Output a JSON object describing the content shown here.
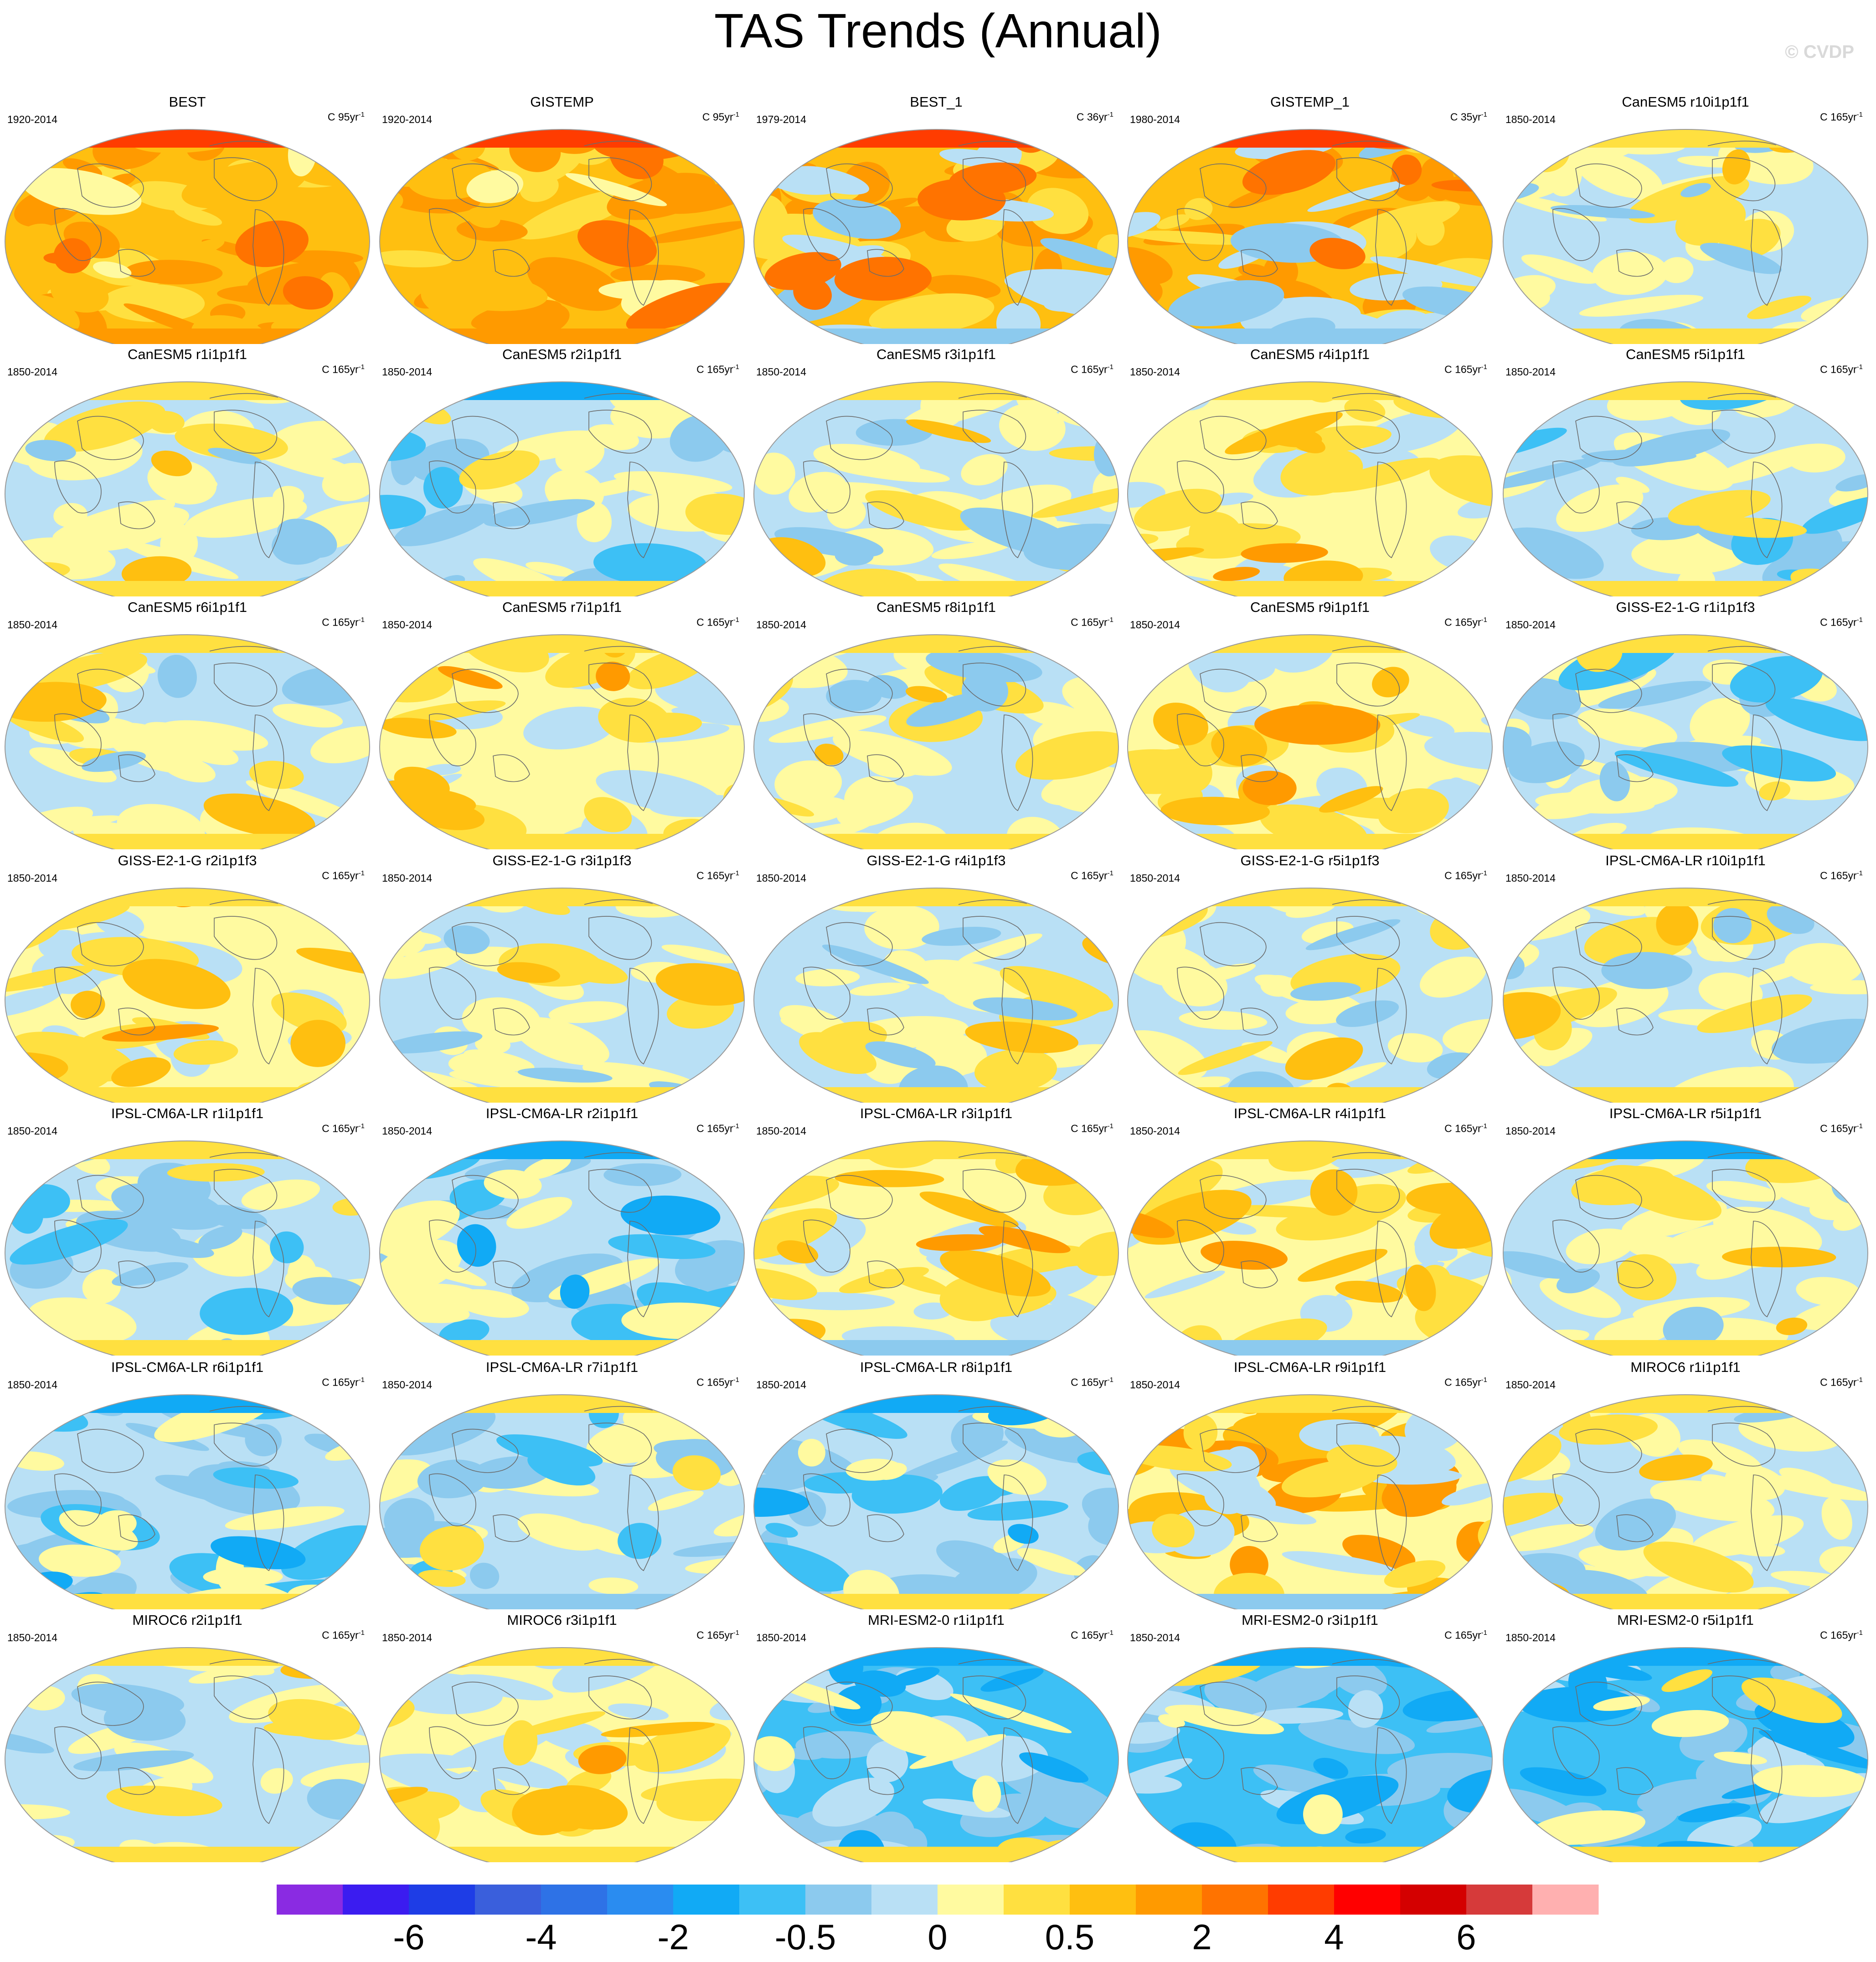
{
  "title": "TAS Trends (Annual)",
  "watermark": "© CVDP",
  "units_prefix": "C",
  "units_suffix": "yr",
  "units_exponent": "-1",
  "chart_data": {
    "type": "map-panels",
    "projection": "robinson-like",
    "grid": false,
    "layout": {
      "rows": 7,
      "columns": 5
    },
    "panels": [
      {
        "name": "BEST",
        "period": "1920-2014",
        "trend_length": "95",
        "pattern": "strong-warm",
        "cold_pole": "none"
      },
      {
        "name": "GISTEMP",
        "period": "1920-2014",
        "trend_length": "95",
        "pattern": "strong-warm",
        "cold_pole": "none"
      },
      {
        "name": "BEST_1",
        "period": "1979-2014",
        "trend_length": "36",
        "pattern": "obs-recent",
        "cold_pole": "south"
      },
      {
        "name": "GISTEMP_1",
        "period": "1980-2014",
        "trend_length": "35",
        "pattern": "obs-recent",
        "cold_pole": "south"
      },
      {
        "name": "CanESM5 r10i1p1f1",
        "period": "1850-2014",
        "trend_length": "165",
        "pattern": "neutral",
        "cold_pole": "none"
      },
      {
        "name": "CanESM5 r1i1p1f1",
        "period": "1850-2014",
        "trend_length": "165",
        "pattern": "neutral",
        "cold_pole": "none"
      },
      {
        "name": "CanESM5 r2i1p1f1",
        "period": "1850-2014",
        "trend_length": "165",
        "pattern": "neutral-cool",
        "cold_pole": "north"
      },
      {
        "name": "CanESM5 r3i1p1f1",
        "period": "1850-2014",
        "trend_length": "165",
        "pattern": "neutral",
        "cold_pole": "none"
      },
      {
        "name": "CanESM5 r4i1p1f1",
        "period": "1850-2014",
        "trend_length": "165",
        "pattern": "neutral-warm",
        "cold_pole": "none"
      },
      {
        "name": "CanESM5 r5i1p1f1",
        "period": "1850-2014",
        "trend_length": "165",
        "pattern": "neutral-cool",
        "cold_pole": "none"
      },
      {
        "name": "CanESM5 r6i1p1f1",
        "period": "1850-2014",
        "trend_length": "165",
        "pattern": "neutral",
        "cold_pole": "none"
      },
      {
        "name": "CanESM5 r7i1p1f1",
        "period": "1850-2014",
        "trend_length": "165",
        "pattern": "neutral-warm",
        "cold_pole": "none"
      },
      {
        "name": "CanESM5 r8i1p1f1",
        "period": "1850-2014",
        "trend_length": "165",
        "pattern": "neutral",
        "cold_pole": "none"
      },
      {
        "name": "CanESM5 r9i1p1f1",
        "period": "1850-2014",
        "trend_length": "165",
        "pattern": "neutral-warm",
        "cold_pole": "none"
      },
      {
        "name": "GISS-E2-1-G r1i1p1f3",
        "period": "1850-2014",
        "trend_length": "165",
        "pattern": "neutral-cool",
        "cold_pole": "none"
      },
      {
        "name": "GISS-E2-1-G r2i1p1f3",
        "period": "1850-2014",
        "trend_length": "165",
        "pattern": "neutral-warm",
        "cold_pole": "none"
      },
      {
        "name": "GISS-E2-1-G r3i1p1f3",
        "period": "1850-2014",
        "trend_length": "165",
        "pattern": "neutral",
        "cold_pole": "none"
      },
      {
        "name": "GISS-E2-1-G r4i1p1f3",
        "period": "1850-2014",
        "trend_length": "165",
        "pattern": "neutral",
        "cold_pole": "none"
      },
      {
        "name": "GISS-E2-1-G r5i1p1f3",
        "period": "1850-2014",
        "trend_length": "165",
        "pattern": "neutral",
        "cold_pole": "none"
      },
      {
        "name": "IPSL-CM6A-LR r10i1p1f1",
        "period": "1850-2014",
        "trend_length": "165",
        "pattern": "neutral",
        "cold_pole": "none"
      },
      {
        "name": "IPSL-CM6A-LR r1i1p1f1",
        "period": "1850-2014",
        "trend_length": "165",
        "pattern": "neutral-cool",
        "cold_pole": "none"
      },
      {
        "name": "IPSL-CM6A-LR r2i1p1f1",
        "period": "1850-2014",
        "trend_length": "165",
        "pattern": "cool",
        "cold_pole": "north"
      },
      {
        "name": "IPSL-CM6A-LR r3i1p1f1",
        "period": "1850-2014",
        "trend_length": "165",
        "pattern": "neutral-warm",
        "cold_pole": "south"
      },
      {
        "name": "IPSL-CM6A-LR r4i1p1f1",
        "period": "1850-2014",
        "trend_length": "165",
        "pattern": "neutral-warm",
        "cold_pole": "south"
      },
      {
        "name": "IPSL-CM6A-LR r5i1p1f1",
        "period": "1850-2014",
        "trend_length": "165",
        "pattern": "neutral",
        "cold_pole": "north"
      },
      {
        "name": "IPSL-CM6A-LR r6i1p1f1",
        "period": "1850-2014",
        "trend_length": "165",
        "pattern": "cool",
        "cold_pole": "north"
      },
      {
        "name": "IPSL-CM6A-LR r7i1p1f1",
        "period": "1850-2014",
        "trend_length": "165",
        "pattern": "neutral-cool",
        "cold_pole": "south"
      },
      {
        "name": "IPSL-CM6A-LR r8i1p1f1",
        "period": "1850-2014",
        "trend_length": "165",
        "pattern": "cool",
        "cold_pole": "north"
      },
      {
        "name": "IPSL-CM6A-LR r9i1p1f1",
        "period": "1850-2014",
        "trend_length": "165",
        "pattern": "warm-north",
        "cold_pole": "south"
      },
      {
        "name": "MIROC6 r1i1p1f1",
        "period": "1850-2014",
        "trend_length": "165",
        "pattern": "neutral",
        "cold_pole": "none"
      },
      {
        "name": "MIROC6 r2i1p1f1",
        "period": "1850-2014",
        "trend_length": "165",
        "pattern": "neutral",
        "cold_pole": "none"
      },
      {
        "name": "MIROC6 r3i1p1f1",
        "period": "1850-2014",
        "trend_length": "165",
        "pattern": "neutral-warm",
        "cold_pole": "none"
      },
      {
        "name": "MRI-ESM2-0 r1i1p1f1",
        "period": "1850-2014",
        "trend_length": "165",
        "pattern": "strong-cool",
        "cold_pole": "north"
      },
      {
        "name": "MRI-ESM2-0 r3i1p1f1",
        "period": "1850-2014",
        "trend_length": "165",
        "pattern": "strong-cool",
        "cold_pole": "north"
      },
      {
        "name": "MRI-ESM2-0 r5i1p1f1",
        "period": "1850-2014",
        "trend_length": "165",
        "pattern": "strong-cool",
        "cold_pole": "north"
      }
    ],
    "colorbar": {
      "colors": [
        "#8a2be2",
        "#3b1cf0",
        "#1e3de6",
        "#3a5fdc",
        "#2e72e6",
        "#2a8cf0",
        "#11aaf5",
        "#3dc0f5",
        "#8ccaee",
        "#b9e0f5",
        "#fffaa0",
        "#ffe040",
        "#ffbf10",
        "#ff9a00",
        "#ff7300",
        "#ff3c00",
        "#ff0000",
        "#d40000",
        "#d63a3a",
        "#ffb0b0"
      ],
      "labels": [
        {
          "text": "-6",
          "boundary": 2
        },
        {
          "text": "-4",
          "boundary": 4
        },
        {
          "text": "-2",
          "boundary": 6
        },
        {
          "text": "-0.5",
          "boundary": 8
        },
        {
          "text": "0",
          "boundary": 10
        },
        {
          "text": "0.5",
          "boundary": 12
        },
        {
          "text": "2",
          "boundary": 14
        },
        {
          "text": "4",
          "boundary": 16
        },
        {
          "text": "6",
          "boundary": 18
        }
      ]
    }
  }
}
